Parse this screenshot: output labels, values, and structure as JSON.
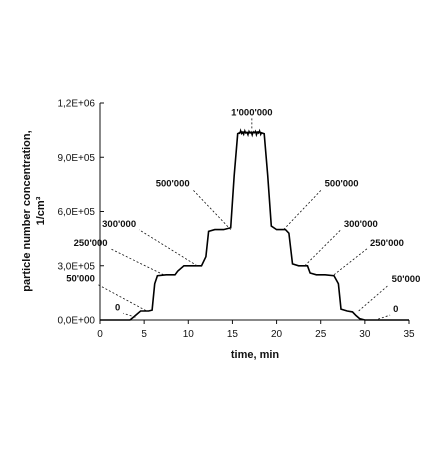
{
  "chart_data": {
    "type": "line",
    "title": "",
    "xlabel": "time, min",
    "ylabel_line1": "particle number concentration,",
    "ylabel_line2": "1/cm³",
    "xlim": [
      0,
      35
    ],
    "ylim": [
      0,
      1200000
    ],
    "x_ticks": [
      0,
      5,
      10,
      15,
      20,
      25,
      30,
      35
    ],
    "x_tick_labels": [
      "0",
      "5",
      "10",
      "15",
      "20",
      "25",
      "30",
      "35"
    ],
    "y_ticks": [
      0,
      300000,
      600000,
      900000,
      1200000
    ],
    "y_tick_labels": [
      "0,0E+00",
      "3,0E+05",
      "6,0E+05",
      "9,0E+05",
      "1,2E+06"
    ],
    "grid": false,
    "series": [
      {
        "x": [
          0,
          3.4,
          3.9,
          4.6,
          5.5,
          5.9,
          6.2,
          6.5,
          7.5,
          8.5,
          8.8,
          9.5,
          10.5,
          11.5,
          12.0,
          12.3,
          13.0,
          14.0,
          14.8,
          15.2,
          15.6,
          16.0,
          17.0,
          18.0,
          18.6,
          19.0,
          19.4,
          20.0,
          21.0,
          21.4,
          21.8,
          22.5,
          23.5,
          23.8,
          24.5,
          25.5,
          26.5,
          27.0,
          27.3,
          28.0,
          28.6,
          29.0,
          29.4,
          30.0,
          30.5,
          32.0,
          35
        ],
        "y": [
          0,
          0,
          20000,
          50000,
          50000,
          55000,
          200000,
          245000,
          250000,
          250000,
          270000,
          300000,
          300000,
          300000,
          350000,
          490000,
          500000,
          500000,
          510000,
          800000,
          1030000,
          1040000,
          1035000,
          1040000,
          1030000,
          800000,
          520000,
          500000,
          500000,
          480000,
          310000,
          300000,
          300000,
          260000,
          250000,
          250000,
          245000,
          200000,
          60000,
          50000,
          45000,
          25000,
          8000,
          0,
          0,
          0,
          0
        ]
      }
    ],
    "annotations": [
      {
        "text": "0",
        "at_x": 4.0,
        "at_y": 15000
      },
      {
        "text": "50'000",
        "at_x": 5.2,
        "at_y": 52000
      },
      {
        "text": "250'000",
        "at_x": 7.2,
        "at_y": 250000
      },
      {
        "text": "300'000",
        "at_x": 11.0,
        "at_y": 300000
      },
      {
        "text": "500'000",
        "at_x": 14.8,
        "at_y": 500000
      },
      {
        "text": "1'000'000",
        "at_x": 17.2,
        "at_y": 1060000
      },
      {
        "text": "500'000",
        "at_x": 20.8,
        "at_y": 500000
      },
      {
        "text": "300'000",
        "at_x": 23.2,
        "at_y": 300000
      },
      {
        "text": "250'000",
        "at_x": 26.5,
        "at_y": 250000
      },
      {
        "text": "50'000",
        "at_x": 29.3,
        "at_y": 50000
      },
      {
        "text": "0",
        "at_x": 31.5,
        "at_y": 5000
      }
    ]
  }
}
